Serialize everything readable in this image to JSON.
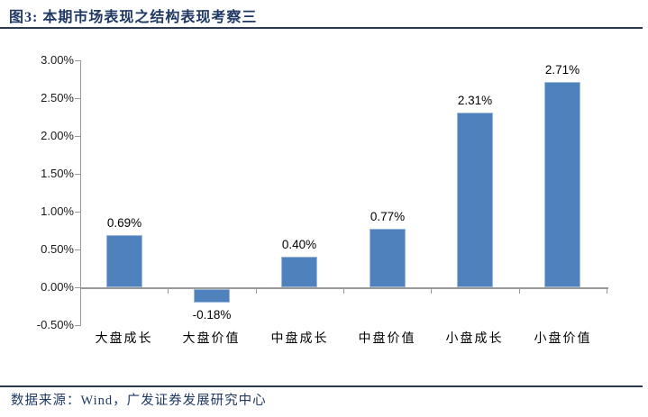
{
  "header": {
    "title": "图3: 本期市场表现之结构表现考察三"
  },
  "footer": {
    "source": "数据来源：Wind，广发证券发展研究中心"
  },
  "colors": {
    "bar_fill": "#4F81BD",
    "bar_border": "#9DB9DC",
    "axis": "#999999",
    "title_navy": "#1F3864",
    "rule_navy": "#2B3A4F",
    "label_black": "#1A1A1A"
  },
  "chart_data": {
    "type": "bar",
    "title": "图3: 本期市场表现之结构表现考察三",
    "categories": [
      "大盘成长",
      "大盘价值",
      "中盘成长",
      "中盘价值",
      "小盘成长",
      "小盘价值"
    ],
    "values": [
      0.69,
      -0.18,
      0.4,
      0.77,
      2.31,
      2.71
    ],
    "data_labels": [
      "0.69%",
      "-0.18%",
      "0.40%",
      "0.77%",
      "2.31%",
      "2.71%"
    ],
    "unit": "%",
    "xlabel": "",
    "ylabel": "",
    "ylim": [
      -0.5,
      3.0
    ],
    "ytick_step": 0.5,
    "ytick_labels": [
      "3.00%",
      "2.50%",
      "2.00%",
      "1.50%",
      "1.00%",
      "0.50%",
      "0.00%",
      "-0.50%"
    ],
    "grid": false,
    "legend_position": "none",
    "source_note": "数据来源：Wind，广发证券发展研究中心"
  }
}
